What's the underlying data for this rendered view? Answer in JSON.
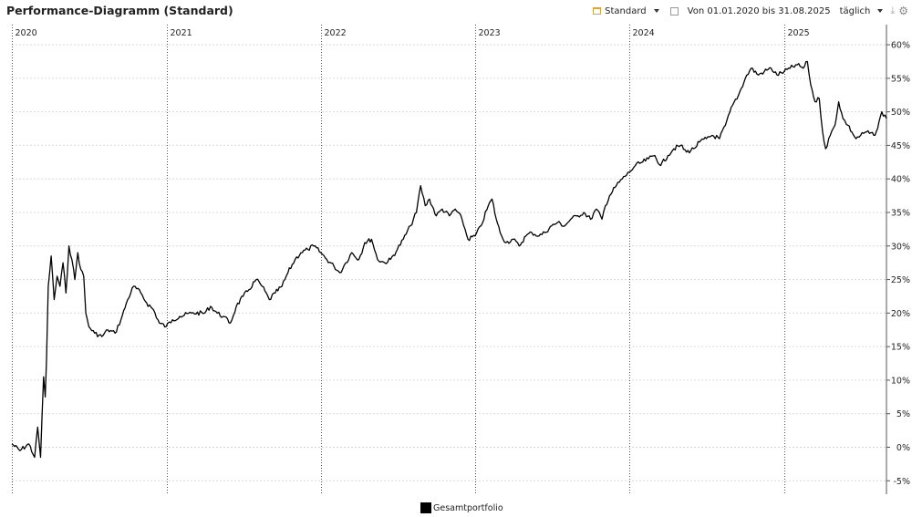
{
  "header": {
    "title": "Performance-Diagramm (Standard)",
    "view_select": "Standard",
    "date_range": "Von 01.01.2020 bis 31.08.2025",
    "interval_select": "täglich"
  },
  "legend": {
    "series_label": "Gesamtportfolio",
    "color": "#000000"
  },
  "chart_data": {
    "type": "line",
    "title": "Performance-Diagramm (Standard)",
    "x_range": [
      "2020-01-01",
      "2025-08-31"
    ],
    "year_labels": [
      "2020",
      "2021",
      "2022",
      "2023",
      "2024",
      "2025"
    ],
    "y_ticks": [
      60,
      55,
      50,
      45,
      40,
      35,
      30,
      25,
      20,
      15,
      10,
      5,
      0,
      -5
    ],
    "y_tick_labels": [
      "60%",
      "55%",
      "50%",
      "45%",
      "40%",
      "35%",
      "30%",
      "25%",
      "20%",
      "15%",
      "10%",
      "5%",
      "0%",
      "-5%"
    ],
    "ylim": [
      -7,
      63
    ],
    "y_unit": "%",
    "grid": true,
    "legend_position": "bottom-center",
    "series": [
      {
        "name": "Gesamtportfolio",
        "color": "#000000",
        "points": [
          [
            "2020-01-01",
            0.5
          ],
          [
            "2020-01-20",
            -0.5
          ],
          [
            "2020-02-10",
            0.5
          ],
          [
            "2020-02-24",
            -1.5
          ],
          [
            "2020-03-02",
            3
          ],
          [
            "2020-03-09",
            -1.5
          ],
          [
            "2020-03-16",
            10.5
          ],
          [
            "2020-03-20",
            7.5
          ],
          [
            "2020-03-23",
            13
          ],
          [
            "2020-03-27",
            24
          ],
          [
            "2020-04-03",
            28.5
          ],
          [
            "2020-04-10",
            22
          ],
          [
            "2020-04-17",
            25.5
          ],
          [
            "2020-04-24",
            24
          ],
          [
            "2020-05-01",
            27.5
          ],
          [
            "2020-05-08",
            23
          ],
          [
            "2020-05-15",
            30
          ],
          [
            "2020-05-22",
            28
          ],
          [
            "2020-05-29",
            25
          ],
          [
            "2020-06-05",
            29
          ],
          [
            "2020-06-12",
            26.5
          ],
          [
            "2020-06-19",
            25.5
          ],
          [
            "2020-06-24",
            20
          ],
          [
            "2020-07-01",
            18
          ],
          [
            "2020-07-15",
            17
          ],
          [
            "2020-08-01",
            16.5
          ],
          [
            "2020-08-15",
            17.5
          ],
          [
            "2020-09-01",
            17
          ],
          [
            "2020-09-15",
            19
          ],
          [
            "2020-10-01",
            22
          ],
          [
            "2020-10-15",
            24
          ],
          [
            "2020-11-01",
            23
          ],
          [
            "2020-11-15",
            21.5
          ],
          [
            "2020-12-01",
            20.5
          ],
          [
            "2020-12-15",
            18.5
          ],
          [
            "2020-12-31",
            18
          ],
          [
            "2021-01-15",
            19
          ],
          [
            "2021-02-01",
            19.5
          ],
          [
            "2021-03-01",
            20
          ],
          [
            "2021-04-01",
            20
          ],
          [
            "2021-04-15",
            21
          ],
          [
            "2021-05-01",
            20
          ],
          [
            "2021-05-15",
            19.5
          ],
          [
            "2021-06-01",
            18.5
          ],
          [
            "2021-06-15",
            21
          ],
          [
            "2021-07-01",
            22.5
          ],
          [
            "2021-07-15",
            23.5
          ],
          [
            "2021-08-01",
            25
          ],
          [
            "2021-08-15",
            24
          ],
          [
            "2021-09-01",
            22
          ],
          [
            "2021-09-15",
            23
          ],
          [
            "2021-10-01",
            24
          ],
          [
            "2021-10-15",
            26
          ],
          [
            "2021-11-01",
            28
          ],
          [
            "2021-11-15",
            29
          ],
          [
            "2021-12-01",
            29.5
          ],
          [
            "2021-12-15",
            30
          ],
          [
            "2022-01-01",
            29
          ],
          [
            "2022-01-15",
            28
          ],
          [
            "2022-02-01",
            27
          ],
          [
            "2022-02-15",
            26
          ],
          [
            "2022-03-01",
            27.5
          ],
          [
            "2022-03-15",
            29
          ],
          [
            "2022-04-01",
            28
          ],
          [
            "2022-04-15",
            30.5
          ],
          [
            "2022-05-01",
            31
          ],
          [
            "2022-05-15",
            28
          ],
          [
            "2022-06-01",
            27.5
          ],
          [
            "2022-06-15",
            28
          ],
          [
            "2022-07-01",
            29.5
          ],
          [
            "2022-07-15",
            31
          ],
          [
            "2022-08-01",
            33
          ],
          [
            "2022-08-15",
            35
          ],
          [
            "2022-08-25",
            39
          ],
          [
            "2022-09-05",
            36
          ],
          [
            "2022-09-15",
            37
          ],
          [
            "2022-10-01",
            34.5
          ],
          [
            "2022-10-15",
            35.5
          ],
          [
            "2022-11-01",
            34.5
          ],
          [
            "2022-11-15",
            35.5
          ],
          [
            "2022-12-01",
            34
          ],
          [
            "2022-12-15",
            31
          ],
          [
            "2023-01-01",
            31.5
          ],
          [
            "2023-01-15",
            33
          ],
          [
            "2023-02-01",
            36
          ],
          [
            "2023-02-10",
            37
          ],
          [
            "2023-02-20",
            34
          ],
          [
            "2023-03-01",
            32
          ],
          [
            "2023-03-15",
            30.5
          ],
          [
            "2023-04-01",
            31
          ],
          [
            "2023-04-15",
            30
          ],
          [
            "2023-05-01",
            31.5
          ],
          [
            "2023-05-15",
            32
          ],
          [
            "2023-06-01",
            31.5
          ],
          [
            "2023-06-15",
            32
          ],
          [
            "2023-07-01",
            33
          ],
          [
            "2023-07-15",
            33.5
          ],
          [
            "2023-08-01",
            33
          ],
          [
            "2023-08-15",
            34
          ],
          [
            "2023-09-01",
            34.5
          ],
          [
            "2023-09-15",
            35
          ],
          [
            "2023-10-01",
            34
          ],
          [
            "2023-10-15",
            35.5
          ],
          [
            "2023-10-28",
            34
          ],
          [
            "2023-11-05",
            36
          ],
          [
            "2023-11-15",
            37.5
          ],
          [
            "2023-12-01",
            39
          ],
          [
            "2023-12-15",
            40
          ],
          [
            "2024-01-01",
            41
          ],
          [
            "2024-01-15",
            42
          ],
          [
            "2024-02-01",
            42.5
          ],
          [
            "2024-02-15",
            43
          ],
          [
            "2024-03-01",
            43.5
          ],
          [
            "2024-03-15",
            42
          ],
          [
            "2024-04-01",
            43.5
          ],
          [
            "2024-04-15",
            44.5
          ],
          [
            "2024-05-01",
            45
          ],
          [
            "2024-05-15",
            44
          ],
          [
            "2024-06-01",
            44.5
          ],
          [
            "2024-06-15",
            45.5
          ],
          [
            "2024-07-01",
            46
          ],
          [
            "2024-07-15",
            46.5
          ],
          [
            "2024-08-01",
            46
          ],
          [
            "2024-08-15",
            48
          ],
          [
            "2024-09-01",
            51
          ],
          [
            "2024-09-15",
            52.5
          ],
          [
            "2024-10-01",
            55
          ],
          [
            "2024-10-15",
            56.5
          ],
          [
            "2024-11-01",
            55.5
          ],
          [
            "2024-11-15",
            56
          ],
          [
            "2024-12-01",
            56.5
          ],
          [
            "2024-12-15",
            55.5
          ],
          [
            "2025-01-01",
            56
          ],
          [
            "2025-01-15",
            56.5
          ],
          [
            "2025-02-01",
            57
          ],
          [
            "2025-02-15",
            56.5
          ],
          [
            "2025-02-25",
            57.5
          ],
          [
            "2025-03-05",
            54
          ],
          [
            "2025-03-15",
            51.5
          ],
          [
            "2025-03-25",
            52
          ],
          [
            "2025-04-02",
            47
          ],
          [
            "2025-04-09",
            44.5
          ],
          [
            "2025-04-20",
            46.5
          ],
          [
            "2025-05-01",
            48
          ],
          [
            "2025-05-10",
            51.5
          ],
          [
            "2025-05-20",
            49
          ],
          [
            "2025-06-01",
            48
          ],
          [
            "2025-06-10",
            47
          ],
          [
            "2025-06-20",
            46
          ],
          [
            "2025-07-01",
            46.5
          ],
          [
            "2025-07-15",
            47
          ],
          [
            "2025-08-01",
            46.5
          ],
          [
            "2025-08-10",
            47.5
          ],
          [
            "2025-08-20",
            50
          ],
          [
            "2025-08-31",
            49
          ]
        ]
      }
    ]
  }
}
